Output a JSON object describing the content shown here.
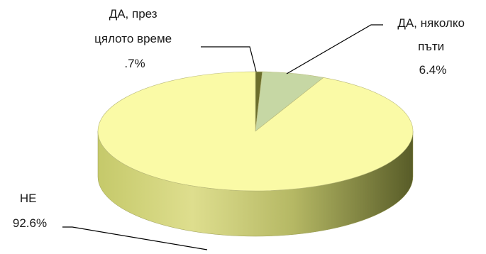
{
  "chart_data": {
    "type": "pie",
    "title": "",
    "style": "3d",
    "legend": "none",
    "slices": [
      {
        "name_lines": [
          "ДА, през",
          "цялото време"
        ],
        "value": 0.7,
        "label": ".7%",
        "color": "#6b6e2c"
      },
      {
        "name_lines": [
          "ДА, няколко",
          "пъти"
        ],
        "value": 6.4,
        "label": "6.4%",
        "color": "#c6d7a4"
      },
      {
        "name_lines": [
          "НЕ"
        ],
        "value": 92.6,
        "label": "92.6%",
        "color": "#fafaa6"
      }
    ]
  }
}
